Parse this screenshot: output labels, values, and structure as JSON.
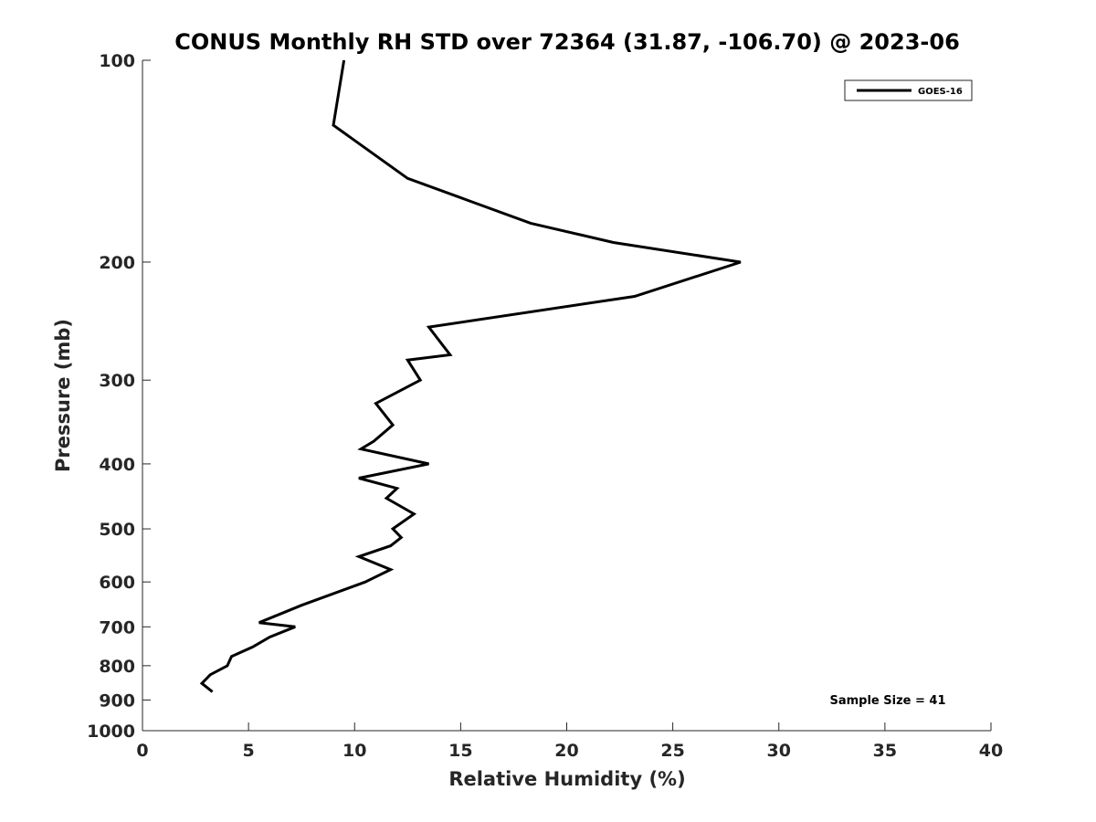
{
  "chart_data": {
    "type": "line",
    "title": "CONUS Monthly RH STD over 72364 (31.87, -106.70) @ 2023-06",
    "xlabel": "Relative Humidity (%)",
    "ylabel": "Pressure (mb)",
    "xlim": [
      0,
      40
    ],
    "ylim": [
      100,
      1000
    ],
    "yscale": "log",
    "y_inverted": true,
    "xticks": [
      0,
      5,
      10,
      15,
      20,
      25,
      30,
      35,
      40
    ],
    "xtick_labels": [
      "0",
      "5",
      "10",
      "15",
      "20",
      "25",
      "30",
      "35",
      "40"
    ],
    "yticks": [
      100,
      200,
      300,
      400,
      500,
      600,
      700,
      800,
      900,
      1000
    ],
    "ytick_labels": [
      "100",
      "200",
      "300",
      "400",
      "500",
      "600",
      "700",
      "800",
      "900",
      "1000"
    ],
    "grid": false,
    "legend_position": "top-right",
    "annotation": "Sample Size = 41",
    "line_color": "#000000",
    "series": [
      {
        "name": "GOES-16",
        "points": [
          {
            "x": 9.5,
            "y": 100
          },
          {
            "x": 9.0,
            "y": 125
          },
          {
            "x": 12.5,
            "y": 150
          },
          {
            "x": 18.3,
            "y": 175
          },
          {
            "x": 22.2,
            "y": 187
          },
          {
            "x": 28.2,
            "y": 200
          },
          {
            "x": 23.2,
            "y": 225
          },
          {
            "x": 13.5,
            "y": 250
          },
          {
            "x": 14.5,
            "y": 275
          },
          {
            "x": 12.5,
            "y": 280
          },
          {
            "x": 13.1,
            "y": 300
          },
          {
            "x": 11.0,
            "y": 325
          },
          {
            "x": 11.8,
            "y": 350
          },
          {
            "x": 10.9,
            "y": 370
          },
          {
            "x": 10.3,
            "y": 380
          },
          {
            "x": 13.5,
            "y": 400
          },
          {
            "x": 10.2,
            "y": 420
          },
          {
            "x": 12.0,
            "y": 435
          },
          {
            "x": 11.5,
            "y": 450
          },
          {
            "x": 12.8,
            "y": 475
          },
          {
            "x": 11.8,
            "y": 500
          },
          {
            "x": 12.2,
            "y": 515
          },
          {
            "x": 11.7,
            "y": 530
          },
          {
            "x": 10.2,
            "y": 550
          },
          {
            "x": 11.7,
            "y": 575
          },
          {
            "x": 10.5,
            "y": 600
          },
          {
            "x": 7.5,
            "y": 650
          },
          {
            "x": 5.5,
            "y": 690
          },
          {
            "x": 7.2,
            "y": 700
          },
          {
            "x": 6.0,
            "y": 725
          },
          {
            "x": 5.2,
            "y": 750
          },
          {
            "x": 4.2,
            "y": 775
          },
          {
            "x": 4.0,
            "y": 800
          },
          {
            "x": 3.2,
            "y": 825
          },
          {
            "x": 2.8,
            "y": 850
          },
          {
            "x": 3.3,
            "y": 875
          }
        ]
      }
    ]
  }
}
